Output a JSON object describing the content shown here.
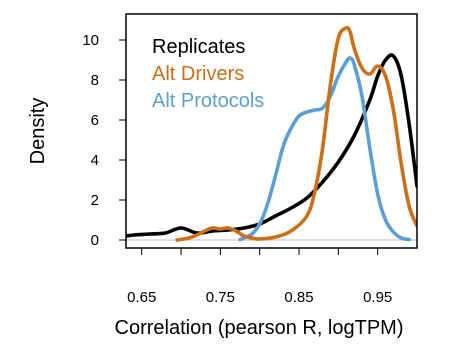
{
  "chart_data": {
    "type": "line",
    "title": "",
    "xlabel": "Correlation (pearson R, logTPM)",
    "ylabel": "Density",
    "xlim": [
      0.63,
      1.0
    ],
    "ylim": [
      -0.4,
      11.3
    ],
    "x_ticks": [
      0.65,
      0.7,
      0.75,
      0.8,
      0.85,
      0.9,
      0.95
    ],
    "x_tick_labels": [
      "0.65",
      "",
      "0.75",
      "",
      "0.85",
      "",
      "0.95"
    ],
    "y_ticks": [
      0,
      2,
      4,
      6,
      8,
      10
    ],
    "y_tick_labels": [
      "0",
      "2",
      "4",
      "6",
      "8",
      "10"
    ],
    "baseline": 0,
    "grid": false,
    "legend_position": "top-left",
    "series": [
      {
        "name": "Replicates",
        "color": "#000000",
        "x": [
          0.63,
          0.64,
          0.66,
          0.68,
          0.7,
          0.72,
          0.74,
          0.76,
          0.78,
          0.8,
          0.82,
          0.84,
          0.86,
          0.88,
          0.9,
          0.92,
          0.94,
          0.95,
          0.96,
          0.97,
          0.98,
          0.99,
          1.0
        ],
        "y": [
          0.2,
          0.25,
          0.3,
          0.35,
          0.6,
          0.35,
          0.45,
          0.5,
          0.6,
          0.8,
          1.2,
          1.6,
          2.1,
          2.9,
          3.9,
          5.2,
          7.0,
          8.2,
          9.0,
          9.2,
          8.2,
          5.8,
          2.7
        ]
      },
      {
        "name": "Alt Drivers",
        "color": "#cc6f16",
        "x": [
          0.695,
          0.71,
          0.72,
          0.73,
          0.74,
          0.75,
          0.76,
          0.77,
          0.78,
          0.79,
          0.8,
          0.82,
          0.84,
          0.86,
          0.87,
          0.88,
          0.89,
          0.9,
          0.91,
          0.915,
          0.92,
          0.93,
          0.94,
          0.95,
          0.96,
          0.97,
          0.98,
          0.99,
          1.0
        ],
        "y": [
          0,
          0.1,
          0.25,
          0.45,
          0.6,
          0.55,
          0.6,
          0.45,
          0.2,
          0.1,
          0.05,
          0.15,
          0.45,
          1.2,
          2.4,
          4.6,
          7.8,
          10.1,
          10.6,
          10.4,
          9.6,
          8.6,
          8.3,
          8.7,
          8.2,
          6.5,
          3.8,
          1.7,
          0.7
        ]
      },
      {
        "name": "Alt Protocols",
        "color": "#5c9fd6",
        "x": [
          0.775,
          0.78,
          0.79,
          0.8,
          0.81,
          0.82,
          0.83,
          0.84,
          0.85,
          0.86,
          0.87,
          0.88,
          0.89,
          0.9,
          0.91,
          0.915,
          0.92,
          0.93,
          0.94,
          0.95,
          0.96,
          0.97,
          0.98,
          0.99
        ],
        "y": [
          0.02,
          0.1,
          0.3,
          0.8,
          1.8,
          3.2,
          4.7,
          5.6,
          6.2,
          6.4,
          6.5,
          6.6,
          7.2,
          8.2,
          8.9,
          9.1,
          8.8,
          7.2,
          4.6,
          2.3,
          1.0,
          0.4,
          0.1,
          0.02
        ]
      }
    ]
  }
}
